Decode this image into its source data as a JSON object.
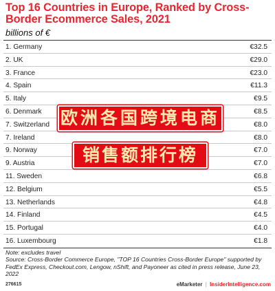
{
  "chart_data": {
    "type": "table",
    "title": "Top 16 Countries in Europe, Ranked by Cross-Border Ecommerce Sales, 2021",
    "subtitle": "billions of €",
    "rows": [
      {
        "label": "1. Germany",
        "value": "€32.5"
      },
      {
        "label": "2. UK",
        "value": "€29.0"
      },
      {
        "label": "3. France",
        "value": "€23.0"
      },
      {
        "label": "4. Spain",
        "value": "€11.3"
      },
      {
        "label": "5. Italy",
        "value": "€9.5"
      },
      {
        "label": "6. Denmark",
        "value": "€8.5"
      },
      {
        "label": "7. Switzerland",
        "value": "€8.0"
      },
      {
        "label": "7. Ireland",
        "value": "€8.0"
      },
      {
        "label": "9. Norway",
        "value": "€7.0"
      },
      {
        "label": "9. Austria",
        "value": "€7.0"
      },
      {
        "label": "11. Sweden",
        "value": "€6.8"
      },
      {
        "label": "12. Belgium",
        "value": "€5.5"
      },
      {
        "label": "13. Netherlands",
        "value": "€4.8"
      },
      {
        "label": "14. Finland",
        "value": "€4.5"
      },
      {
        "label": "15. Portugal",
        "value": "€4.0"
      },
      {
        "label": "16. Luxembourg",
        "value": "€1.8"
      }
    ]
  },
  "overlay": {
    "line1": "欧洲各国跨境电商",
    "line2": "销售额排行榜"
  },
  "notes": {
    "note": "Note: excludes travel",
    "source": "Source: Cross-Border Commerce Europe, \"TOP 16 Countries Cross-Border Europe\" supported by FedEx Express, Checkout.com, Lengow, nShift, and Payoneer as cited in press release, June 23, 2022"
  },
  "footer": {
    "chart_id": "276615",
    "brand": "eMarketer",
    "separator": "|",
    "site": "InsiderIntelligence.com"
  },
  "colors": {
    "title": "#e8262f",
    "banner_bg": "#e30b14",
    "banner_text": "#ffe8ad"
  }
}
